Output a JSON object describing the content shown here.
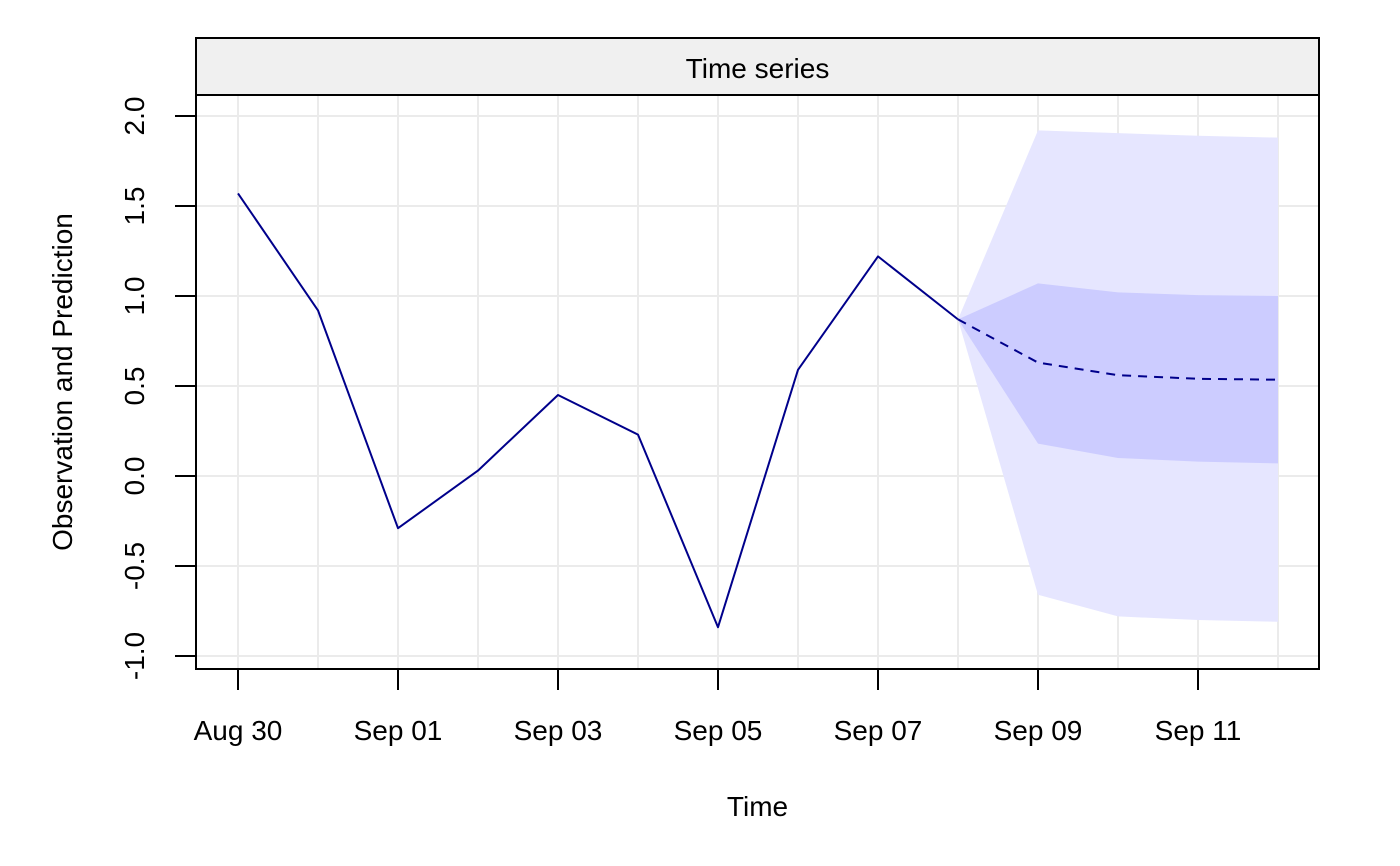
{
  "chart_data": {
    "type": "line",
    "title": "Time series",
    "xlabel": "Time",
    "ylabel": "Observation and Prediction",
    "x_type": "date",
    "x_tick_labels": [
      {
        "date": "Aug 30",
        "label": "Aug 30"
      },
      {
        "date": "Sep 01",
        "label": "Sep 01"
      },
      {
        "date": "Sep 03",
        "label": "Sep 03"
      },
      {
        "date": "Sep 05",
        "label": "Sep 05"
      },
      {
        "date": "Sep 07",
        "label": "Sep 07"
      },
      {
        "date": "Sep 09",
        "label": "Sep 09"
      },
      {
        "date": "Sep 11",
        "label": "Sep 11"
      }
    ],
    "y_ticks": [
      -1.0,
      -0.5,
      0.0,
      0.5,
      1.0,
      1.5,
      2.0
    ],
    "y_tick_labels": [
      "-1.0",
      "-0.5",
      "0.0",
      "0.5",
      "1.0",
      "1.5",
      "2.0"
    ],
    "grid": true,
    "series": [
      {
        "style": "solid",
        "color": "#00008B",
        "points": [
          {
            "x": "Aug 30",
            "y": 1.57
          },
          {
            "x": "Aug 31",
            "y": 0.92
          },
          {
            "x": "Sep 01",
            "y": -0.29
          },
          {
            "x": "Sep 02",
            "y": 0.03
          },
          {
            "x": "Sep 03",
            "y": 0.45
          },
          {
            "x": "Sep 04",
            "y": 0.23
          },
          {
            "x": "Sep 05",
            "y": -0.84
          },
          {
            "x": "Sep 06",
            "y": 0.59
          },
          {
            "x": "Sep 07",
            "y": 1.22
          },
          {
            "x": "Sep 08",
            "y": 0.87
          }
        ]
      },
      {
        "style": "dashed",
        "color": "#00008B",
        "points": [
          {
            "x": "Sep 08",
            "y": 0.87
          },
          {
            "x": "Sep 09",
            "y": 0.63
          },
          {
            "x": "Sep 10",
            "y": 0.56
          },
          {
            "x": "Sep 11",
            "y": 0.54
          },
          {
            "x": "Sep 12",
            "y": 0.535
          }
        ]
      }
    ],
    "bands": [
      {
        "color": "#E6E6FF",
        "points": [
          {
            "x": "Sep 08",
            "lower": 0.87,
            "upper": 0.87
          },
          {
            "x": "Sep 09",
            "lower": -0.66,
            "upper": 1.92
          },
          {
            "x": "Sep 10",
            "lower": -0.78,
            "upper": 1.905
          },
          {
            "x": "Sep 11",
            "lower": -0.8,
            "upper": 1.89
          },
          {
            "x": "Sep 12",
            "lower": -0.81,
            "upper": 1.88
          }
        ]
      },
      {
        "color": "#CCCCFF",
        "points": [
          {
            "x": "Sep 08",
            "lower": 0.87,
            "upper": 0.87
          },
          {
            "x": "Sep 09",
            "lower": 0.18,
            "upper": 1.07
          },
          {
            "x": "Sep 10",
            "lower": 0.1,
            "upper": 1.02
          },
          {
            "x": "Sep 11",
            "lower": 0.08,
            "upper": 1.005
          },
          {
            "x": "Sep 12",
            "lower": 0.07,
            "upper": 1.0
          }
        ]
      }
    ],
    "colors": {
      "strip_background": "#F0F0F0",
      "grid": "#EBEBEB",
      "axis": "#000000"
    }
  }
}
